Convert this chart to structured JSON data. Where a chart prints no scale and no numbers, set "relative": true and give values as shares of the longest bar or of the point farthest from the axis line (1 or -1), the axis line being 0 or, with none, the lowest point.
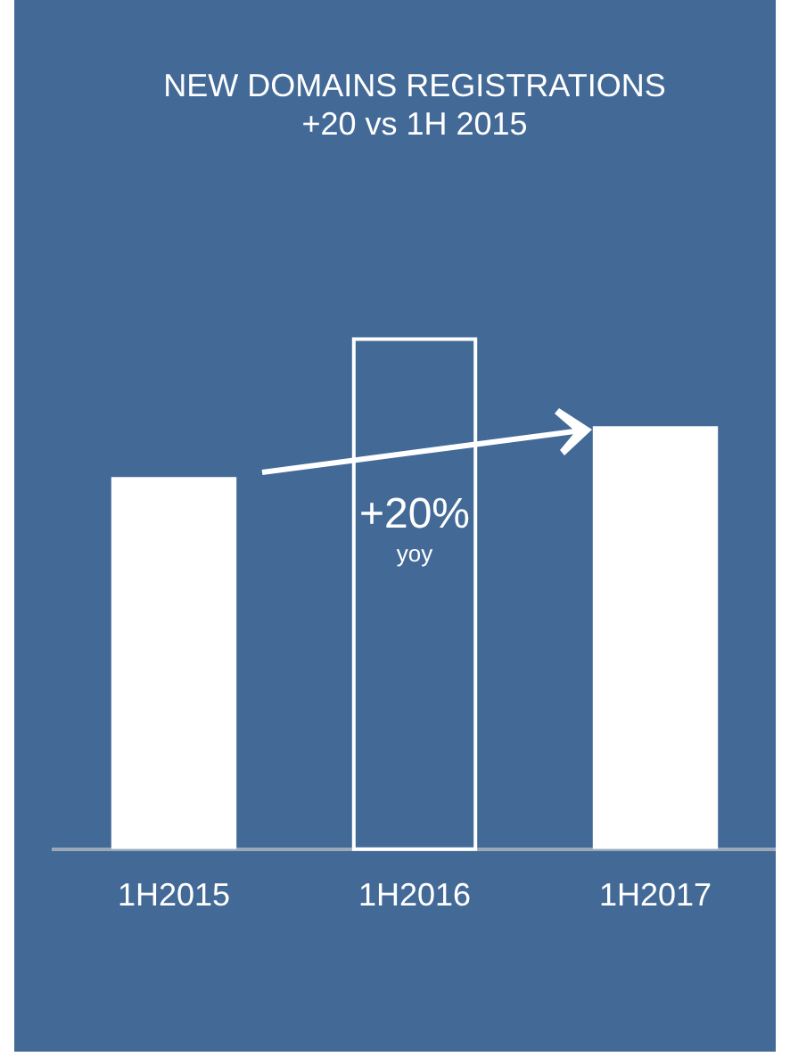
{
  "chart_data": {
    "type": "bar",
    "title": "NEW DOMAINS REGISTRATIONS",
    "subtitle": "+20 vs 1H 2015",
    "categories": [
      "1H2015",
      "1H2016",
      "1H2017"
    ],
    "series": [
      {
        "color": "#ffffff",
        "values": [
          0.727,
          null,
          0.826
        ]
      },
      {
        "color": "#ffffff",
        "line_style": "solid",
        "values": [
          null,
          1,
          null
        ]
      }
    ],
    "relative": true,
    "annotations": [
      "+20%",
      "yoy"
    ],
    "grid": false,
    "legend": false
  }
}
